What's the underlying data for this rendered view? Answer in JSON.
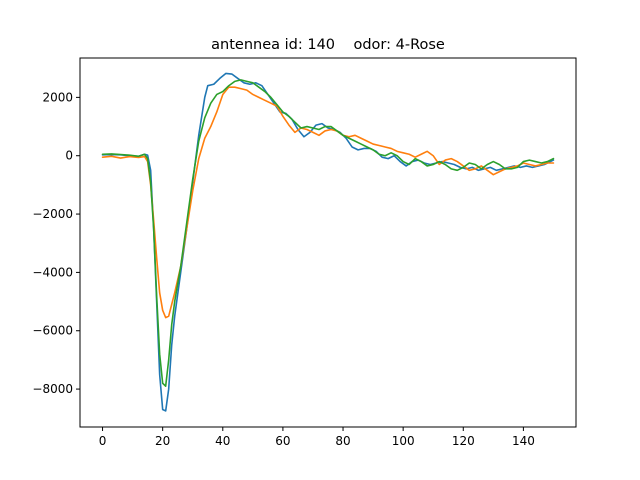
{
  "chart_data": {
    "type": "line",
    "title": "antennea id: 140    odor: 4-Rose",
    "xlabel": "",
    "ylabel": "",
    "xlim": [
      -7.5,
      157.5
    ],
    "ylim": [
      -9300,
      3350
    ],
    "grid": false,
    "legend": "none",
    "x_ticks": [
      0,
      20,
      40,
      60,
      80,
      100,
      120,
      140
    ],
    "y_ticks": [
      2000,
      0,
      -2000,
      -4000,
      -6000,
      -8000
    ],
    "series": [
      {
        "color": "#1f77b4",
        "points": [
          [
            0,
            30
          ],
          [
            3,
            40
          ],
          [
            6,
            30
          ],
          [
            9,
            0
          ],
          [
            12,
            -20
          ],
          [
            14,
            50
          ],
          [
            15,
            20
          ],
          [
            16,
            -500
          ],
          [
            17,
            -2500
          ],
          [
            18,
            -5000
          ],
          [
            19,
            -7500
          ],
          [
            20,
            -8700
          ],
          [
            21,
            -8750
          ],
          [
            22,
            -8000
          ],
          [
            23,
            -6500
          ],
          [
            24,
            -5500
          ],
          [
            26,
            -4000
          ],
          [
            28,
            -2500
          ],
          [
            30,
            -900
          ],
          [
            32,
            700
          ],
          [
            34,
            2000
          ],
          [
            35,
            2400
          ],
          [
            37,
            2450
          ],
          [
            39,
            2650
          ],
          [
            41,
            2820
          ],
          [
            43,
            2800
          ],
          [
            45,
            2650
          ],
          [
            47,
            2500
          ],
          [
            49,
            2450
          ],
          [
            51,
            2500
          ],
          [
            53,
            2400
          ],
          [
            55,
            2100
          ],
          [
            57,
            1800
          ],
          [
            59,
            1500
          ],
          [
            61,
            1450
          ],
          [
            63,
            1250
          ],
          [
            65,
            900
          ],
          [
            67,
            650
          ],
          [
            69,
            800
          ],
          [
            71,
            1050
          ],
          [
            73,
            1100
          ],
          [
            75,
            950
          ],
          [
            77,
            900
          ],
          [
            79,
            800
          ],
          [
            81,
            600
          ],
          [
            83,
            300
          ],
          [
            85,
            200
          ],
          [
            87,
            250
          ],
          [
            89,
            250
          ],
          [
            91,
            150
          ],
          [
            93,
            -50
          ],
          [
            95,
            -100
          ],
          [
            97,
            0
          ],
          [
            99,
            -200
          ],
          [
            101,
            -350
          ],
          [
            103,
            -200
          ],
          [
            105,
            -150
          ],
          [
            107,
            -250
          ],
          [
            109,
            -300
          ],
          [
            111,
            -250
          ],
          [
            113,
            -200
          ],
          [
            115,
            -250
          ],
          [
            117,
            -300
          ],
          [
            119,
            -400
          ],
          [
            121,
            -450
          ],
          [
            123,
            -400
          ],
          [
            125,
            -500
          ],
          [
            127,
            -450
          ],
          [
            129,
            -400
          ],
          [
            131,
            -500
          ],
          [
            133,
            -450
          ],
          [
            135,
            -400
          ],
          [
            137,
            -350
          ],
          [
            139,
            -400
          ],
          [
            141,
            -350
          ],
          [
            143,
            -400
          ],
          [
            145,
            -350
          ],
          [
            147,
            -300
          ],
          [
            149,
            -200
          ],
          [
            150,
            -150
          ]
        ]
      },
      {
        "color": "#ff7f0e",
        "points": [
          [
            0,
            -50
          ],
          [
            3,
            -20
          ],
          [
            6,
            -80
          ],
          [
            9,
            -30
          ],
          [
            12,
            -60
          ],
          [
            14,
            -30
          ],
          [
            15,
            -200
          ],
          [
            16,
            -1000
          ],
          [
            17,
            -2200
          ],
          [
            18,
            -3500
          ],
          [
            19,
            -4700
          ],
          [
            20,
            -5300
          ],
          [
            21,
            -5550
          ],
          [
            22,
            -5500
          ],
          [
            23,
            -5100
          ],
          [
            24,
            -4700
          ],
          [
            26,
            -3800
          ],
          [
            28,
            -2500
          ],
          [
            30,
            -1200
          ],
          [
            32,
            -100
          ],
          [
            34,
            600
          ],
          [
            36,
            1000
          ],
          [
            38,
            1500
          ],
          [
            40,
            2100
          ],
          [
            42,
            2350
          ],
          [
            44,
            2350
          ],
          [
            46,
            2300
          ],
          [
            48,
            2250
          ],
          [
            50,
            2100
          ],
          [
            52,
            2000
          ],
          [
            54,
            1900
          ],
          [
            56,
            1800
          ],
          [
            58,
            1700
          ],
          [
            60,
            1350
          ],
          [
            62,
            1050
          ],
          [
            64,
            800
          ],
          [
            66,
            950
          ],
          [
            68,
            900
          ],
          [
            70,
            800
          ],
          [
            72,
            700
          ],
          [
            74,
            850
          ],
          [
            76,
            900
          ],
          [
            78,
            850
          ],
          [
            80,
            700
          ],
          [
            82,
            650
          ],
          [
            84,
            700
          ],
          [
            86,
            600
          ],
          [
            88,
            500
          ],
          [
            90,
            400
          ],
          [
            92,
            350
          ],
          [
            94,
            300
          ],
          [
            96,
            250
          ],
          [
            98,
            150
          ],
          [
            100,
            100
          ],
          [
            102,
            50
          ],
          [
            104,
            -50
          ],
          [
            106,
            50
          ],
          [
            108,
            150
          ],
          [
            110,
            0
          ],
          [
            112,
            -300
          ],
          [
            114,
            -150
          ],
          [
            116,
            -100
          ],
          [
            118,
            -200
          ],
          [
            120,
            -350
          ],
          [
            122,
            -500
          ],
          [
            124,
            -450
          ],
          [
            126,
            -350
          ],
          [
            128,
            -500
          ],
          [
            130,
            -650
          ],
          [
            132,
            -550
          ],
          [
            134,
            -450
          ],
          [
            136,
            -400
          ],
          [
            138,
            -350
          ],
          [
            140,
            -250
          ],
          [
            142,
            -300
          ],
          [
            144,
            -350
          ],
          [
            146,
            -300
          ],
          [
            148,
            -250
          ],
          [
            150,
            -250
          ]
        ]
      },
      {
        "color": "#2ca02c",
        "points": [
          [
            0,
            50
          ],
          [
            3,
            60
          ],
          [
            6,
            40
          ],
          [
            9,
            20
          ],
          [
            12,
            -20
          ],
          [
            14,
            50
          ],
          [
            15,
            -100
          ],
          [
            16,
            -900
          ],
          [
            17,
            -2500
          ],
          [
            18,
            -4800
          ],
          [
            19,
            -6800
          ],
          [
            20,
            -7800
          ],
          [
            21,
            -7900
          ],
          [
            22,
            -7000
          ],
          [
            23,
            -5800
          ],
          [
            24,
            -5000
          ],
          [
            26,
            -3800
          ],
          [
            28,
            -2300
          ],
          [
            30,
            -800
          ],
          [
            32,
            500
          ],
          [
            34,
            1300
          ],
          [
            36,
            1800
          ],
          [
            38,
            2100
          ],
          [
            40,
            2200
          ],
          [
            42,
            2400
          ],
          [
            44,
            2550
          ],
          [
            46,
            2600
          ],
          [
            48,
            2550
          ],
          [
            50,
            2500
          ],
          [
            52,
            2350
          ],
          [
            54,
            2200
          ],
          [
            56,
            2000
          ],
          [
            58,
            1750
          ],
          [
            60,
            1500
          ],
          [
            62,
            1350
          ],
          [
            64,
            1150
          ],
          [
            66,
            950
          ],
          [
            68,
            1000
          ],
          [
            70,
            950
          ],
          [
            72,
            900
          ],
          [
            74,
            1000
          ],
          [
            76,
            1000
          ],
          [
            78,
            850
          ],
          [
            80,
            700
          ],
          [
            82,
            600
          ],
          [
            84,
            500
          ],
          [
            86,
            400
          ],
          [
            88,
            300
          ],
          [
            90,
            200
          ],
          [
            92,
            50
          ],
          [
            94,
            0
          ],
          [
            96,
            100
          ],
          [
            98,
            0
          ],
          [
            100,
            -200
          ],
          [
            102,
            -300
          ],
          [
            104,
            -100
          ],
          [
            106,
            -200
          ],
          [
            108,
            -350
          ],
          [
            110,
            -300
          ],
          [
            112,
            -200
          ],
          [
            114,
            -300
          ],
          [
            116,
            -450
          ],
          [
            118,
            -500
          ],
          [
            120,
            -400
          ],
          [
            122,
            -250
          ],
          [
            124,
            -300
          ],
          [
            126,
            -450
          ],
          [
            128,
            -300
          ],
          [
            130,
            -200
          ],
          [
            132,
            -300
          ],
          [
            134,
            -450
          ],
          [
            136,
            -450
          ],
          [
            138,
            -400
          ],
          [
            140,
            -200
          ],
          [
            142,
            -150
          ],
          [
            144,
            -200
          ],
          [
            146,
            -250
          ],
          [
            148,
            -200
          ],
          [
            150,
            -100
          ]
        ]
      }
    ]
  }
}
